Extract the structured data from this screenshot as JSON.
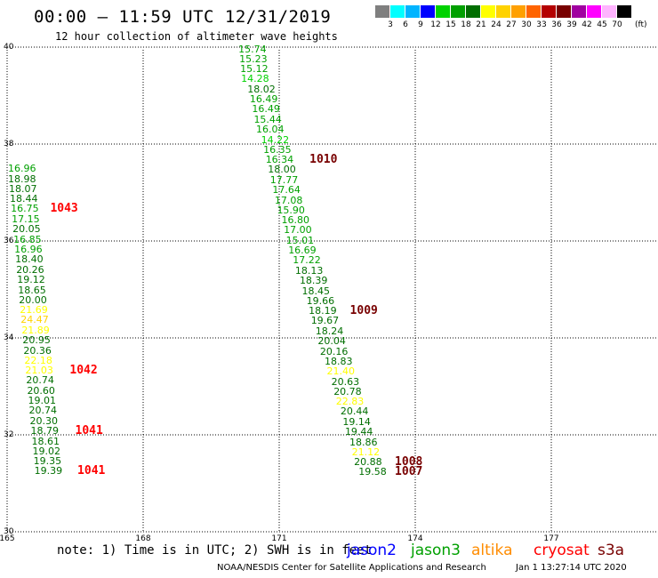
{
  "header": {
    "title": "00:00 – 11:59 UTC 12/31/2019",
    "subtitle": "12 hour collection of altimeter wave heights"
  },
  "legend": {
    "colors": [
      "#7f7f7f",
      "#00ffff",
      "#00b4ff",
      "#0000ff",
      "#00d200",
      "#00a000",
      "#006e00",
      "#ffff00",
      "#ffd200",
      "#ffa000",
      "#ff6400",
      "#b40000",
      "#780000",
      "#a000a0",
      "#ff00ff",
      "#ffb4ff",
      "#000000"
    ],
    "labels": [
      "3",
      "6",
      "9",
      "12",
      "15",
      "18",
      "21",
      "24",
      "27",
      "30",
      "33",
      "36",
      "39",
      "42",
      "45",
      "70"
    ],
    "unit": "(ft)"
  },
  "map": {
    "y_labels": [
      "40",
      "38",
      "36",
      "34",
      "32",
      "30"
    ],
    "x_labels": [
      "165",
      "168",
      "171",
      "174",
      "177"
    ]
  },
  "tracks": [
    {
      "satellite": "jason3",
      "observations": [
        {
          "lat": 39.97,
          "lon": 170.1,
          "swh": "15.74"
        },
        {
          "lat": 39.76,
          "lon": 170.12,
          "swh": "15.23"
        },
        {
          "lat": 39.56,
          "lon": 170.14,
          "swh": "15.12"
        },
        {
          "lat": 39.35,
          "lon": 170.16,
          "swh": "14.28"
        },
        {
          "lat": 39.14,
          "lon": 170.3,
          "swh": "18.02"
        },
        {
          "lat": 38.93,
          "lon": 170.35,
          "swh": "16.49"
        },
        {
          "lat": 38.73,
          "lon": 170.4,
          "swh": "16.49"
        },
        {
          "lat": 38.52,
          "lon": 170.44,
          "swh": "15.44"
        },
        {
          "lat": 38.31,
          "lon": 170.49,
          "swh": "16.04"
        },
        {
          "lat": 38.1,
          "lon": 170.6,
          "swh": "14.22"
        },
        {
          "lat": 37.89,
          "lon": 170.65,
          "swh": "16.35"
        },
        {
          "lat": 37.69,
          "lon": 170.7,
          "swh": "16.34"
        },
        {
          "lat": 37.48,
          "lon": 170.75,
          "swh": "18.00"
        },
        {
          "lat": 37.27,
          "lon": 170.8,
          "swh": "17.77"
        },
        {
          "lat": 37.06,
          "lon": 170.85,
          "swh": "17.64"
        },
        {
          "lat": 36.85,
          "lon": 170.9,
          "swh": "17.08"
        },
        {
          "lat": 36.65,
          "lon": 170.95,
          "swh": "15.90"
        },
        {
          "lat": 36.44,
          "lon": 171.05,
          "swh": "16.80"
        },
        {
          "lat": 36.23,
          "lon": 171.1,
          "swh": "17.00"
        },
        {
          "lat": 36.02,
          "lon": 171.15,
          "swh": "15.01"
        },
        {
          "lat": 35.81,
          "lon": 171.2,
          "swh": "16.69"
        },
        {
          "lat": 35.61,
          "lon": 171.3,
          "swh": "17.22"
        },
        {
          "lat": 35.4,
          "lon": 171.35,
          "swh": "18.13"
        },
        {
          "lat": 35.19,
          "lon": 171.45,
          "swh": "18.39"
        },
        {
          "lat": 34.98,
          "lon": 171.5,
          "swh": "18.45"
        },
        {
          "lat": 34.77,
          "lon": 171.6,
          "swh": "19.66"
        },
        {
          "lat": 34.57,
          "lon": 171.65,
          "swh": "18.19"
        },
        {
          "lat": 34.36,
          "lon": 171.7,
          "swh": "19.67"
        },
        {
          "lat": 34.15,
          "lon": 171.8,
          "swh": "18.24"
        },
        {
          "lat": 33.94,
          "lon": 171.85,
          "swh": "20.04"
        },
        {
          "lat": 33.73,
          "lon": 171.9,
          "swh": "20.16"
        },
        {
          "lat": 33.53,
          "lon": 172.0,
          "swh": "18.83"
        },
        {
          "lat": 33.32,
          "lon": 172.05,
          "swh": "21.40"
        },
        {
          "lat": 33.11,
          "lon": 172.15,
          "swh": "20.63"
        },
        {
          "lat": 32.9,
          "lon": 172.2,
          "swh": "20.78"
        },
        {
          "lat": 32.69,
          "lon": 172.25,
          "swh": "22.83"
        },
        {
          "lat": 32.49,
          "lon": 172.35,
          "swh": "20.44"
        },
        {
          "lat": 32.28,
          "lon": 172.4,
          "swh": "19.14"
        },
        {
          "lat": 32.07,
          "lon": 172.45,
          "swh": "19.44"
        },
        {
          "lat": 31.86,
          "lon": 172.55,
          "swh": "18.86"
        },
        {
          "lat": 31.65,
          "lon": 172.6,
          "swh": "21.12"
        },
        {
          "lat": 31.45,
          "lon": 172.65,
          "swh": "20.88"
        },
        {
          "lat": 31.24,
          "lon": 172.75,
          "swh": "19.58"
        }
      ]
    },
    {
      "satellite": "jason3",
      "observations": [
        {
          "lat": 37.5,
          "lon": 165.02,
          "swh": "16.96"
        },
        {
          "lat": 37.29,
          "lon": 165.02,
          "swh": "18.98"
        },
        {
          "lat": 37.08,
          "lon": 165.04,
          "swh": "18.07"
        },
        {
          "lat": 36.88,
          "lon": 165.06,
          "swh": "18.44"
        },
        {
          "lat": 36.67,
          "lon": 165.08,
          "swh": "16.75"
        },
        {
          "lat": 36.46,
          "lon": 165.1,
          "swh": "17.15"
        },
        {
          "lat": 36.25,
          "lon": 165.12,
          "swh": "20.05"
        },
        {
          "lat": 36.04,
          "lon": 165.14,
          "swh": "16.85"
        },
        {
          "lat": 35.83,
          "lon": 165.16,
          "swh": "16.96"
        },
        {
          "lat": 35.63,
          "lon": 165.18,
          "swh": "18.40"
        },
        {
          "lat": 35.42,
          "lon": 165.2,
          "swh": "20.26"
        },
        {
          "lat": 35.21,
          "lon": 165.22,
          "swh": "19.12"
        },
        {
          "lat": 35.0,
          "lon": 165.24,
          "swh": "18.65"
        },
        {
          "lat": 34.79,
          "lon": 165.26,
          "swh": "20.00"
        },
        {
          "lat": 34.59,
          "lon": 165.28,
          "swh": "21.69"
        },
        {
          "lat": 34.38,
          "lon": 165.3,
          "swh": "24.47"
        },
        {
          "lat": 34.17,
          "lon": 165.32,
          "swh": "21.89"
        },
        {
          "lat": 33.96,
          "lon": 165.34,
          "swh": "20.95"
        },
        {
          "lat": 33.75,
          "lon": 165.36,
          "swh": "20.36"
        },
        {
          "lat": 33.55,
          "lon": 165.38,
          "swh": "22.18"
        },
        {
          "lat": 33.34,
          "lon": 165.4,
          "swh": "21.03"
        },
        {
          "lat": 33.13,
          "lon": 165.42,
          "swh": "20.74"
        },
        {
          "lat": 32.92,
          "lon": 165.44,
          "swh": "20.60"
        },
        {
          "lat": 32.71,
          "lon": 165.46,
          "swh": "19.01"
        },
        {
          "lat": 32.51,
          "lon": 165.48,
          "swh": "20.74"
        },
        {
          "lat": 32.3,
          "lon": 165.5,
          "swh": "20.30"
        },
        {
          "lat": 32.09,
          "lon": 165.52,
          "swh": "18.79"
        },
        {
          "lat": 31.88,
          "lon": 165.54,
          "swh": "18.61"
        },
        {
          "lat": 31.67,
          "lon": 165.56,
          "swh": "19.02"
        },
        {
          "lat": 31.47,
          "lon": 165.58,
          "swh": "19.35"
        },
        {
          "lat": 31.26,
          "lon": 165.6,
          "swh": "19.39"
        }
      ]
    }
  ],
  "pressure_labels": [
    {
      "text": "1010",
      "lat": 37.69,
      "lon": 171.67,
      "color": "#780000"
    },
    {
      "text": "1043",
      "lat": 36.67,
      "lon": 165.95,
      "color": "#ff0000"
    },
    {
      "text": "1009",
      "lat": 34.57,
      "lon": 172.56,
      "color": "#780000"
    },
    {
      "text": "1042",
      "lat": 33.34,
      "lon": 166.38,
      "color": "#ff0000"
    },
    {
      "text": "1041",
      "lat": 32.09,
      "lon": 166.5,
      "color": "#ff0000"
    },
    {
      "text": "1008",
      "lat": 31.45,
      "lon": 173.55,
      "color": "#780000"
    },
    {
      "text": "1007",
      "lat": 31.24,
      "lon": 173.55,
      "color": "#780000"
    },
    {
      "text": "1041",
      "lat": 31.26,
      "lon": 166.55,
      "color": "#ff0000"
    }
  ],
  "footer": {
    "note": "note:  1) Time is in UTC; 2) SWH is in feet",
    "satellites": [
      {
        "name": "jason2",
        "color": "#0000ff"
      },
      {
        "name": "jason3",
        "color": "#00a000"
      },
      {
        "name": "altika",
        "color": "#ff8c00"
      },
      {
        "name": "cryosat",
        "color": "#ff0000"
      },
      {
        "name": "s3a",
        "color": "#780000"
      }
    ],
    "credit": "NOAA/NESDIS Center for Satellite Applications and Research",
    "timestamp": "Jan  1 13:27:14 UTC 2020"
  }
}
